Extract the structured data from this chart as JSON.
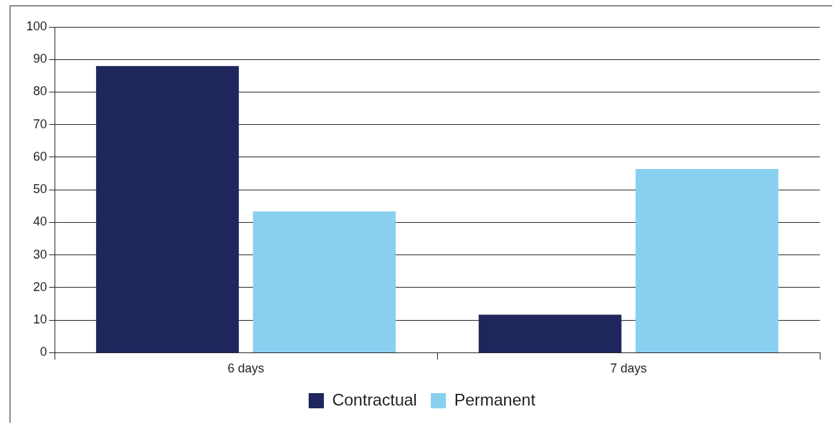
{
  "chart_data": {
    "type": "bar",
    "categories": [
      "6 days",
      "7 days"
    ],
    "series": [
      {
        "name": "Contractual",
        "color": "#1f265c",
        "values": [
          88,
          11.7
        ]
      },
      {
        "name": "Permanent",
        "color": "#89cff0",
        "values": [
          43.4,
          56.4
        ]
      }
    ],
    "ylim": [
      0,
      100
    ],
    "yticks": [
      0,
      10,
      20,
      30,
      40,
      50,
      60,
      70,
      80,
      90,
      100
    ],
    "grid": "y",
    "legend": "bottom"
  }
}
